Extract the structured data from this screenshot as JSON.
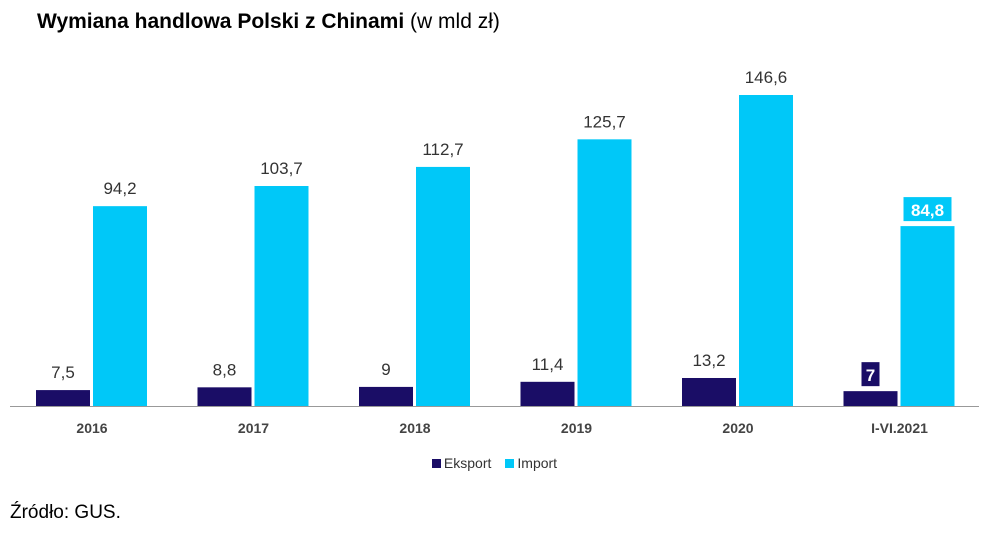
{
  "title_bold": "Wymiana handlowa Polski z Chinami",
  "title_rest": "(w mld zł)",
  "source": "Źródło: GUS.",
  "colors": {
    "eksport": "#1a0d66",
    "import": "#00c8f8",
    "axis": "#999999"
  },
  "chart_data": {
    "type": "bar",
    "title": "Wymiana handlowa Polski z Chinami (w mld zł)",
    "categories": [
      "2016",
      "2017",
      "2018",
      "2019",
      "2020",
      "I-VI.2021"
    ],
    "series": [
      {
        "name": "Eksport",
        "values": [
          7.5,
          8.8,
          9,
          11.4,
          13.2,
          7
        ],
        "labels": [
          "7,5",
          "8,8",
          "9",
          "11,4",
          "13,2",
          "7"
        ]
      },
      {
        "name": "Import",
        "values": [
          94.2,
          103.7,
          112.7,
          125.7,
          146.6,
          84.8
        ],
        "labels": [
          "94,2",
          "103,7",
          "112,7",
          "125,7",
          "146,6",
          "84,8"
        ]
      }
    ],
    "highlighted_category": "I-VI.2021",
    "ylim": [
      0,
      150
    ],
    "grid": false,
    "legend": "bottom"
  }
}
